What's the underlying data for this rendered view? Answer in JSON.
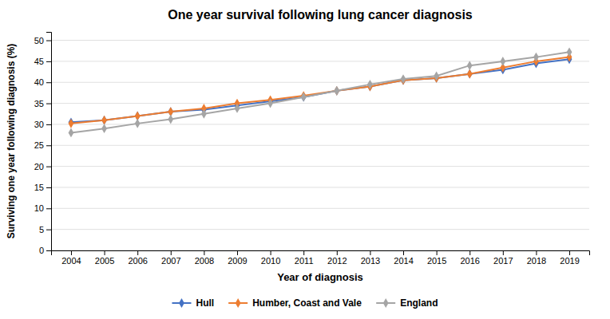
{
  "chart_data": {
    "type": "line",
    "title": "One year survival following lung cancer diagnosis",
    "xlabel": "Year of diagnosis",
    "ylabel": "Surviving one year following diagnosis (%)",
    "x": [
      2004,
      2005,
      2006,
      2007,
      2008,
      2009,
      2010,
      2011,
      2012,
      2013,
      2014,
      2015,
      2016,
      2017,
      2018,
      2019
    ],
    "series": [
      {
        "name": "Hull",
        "color": "#4472C4",
        "marker": "diamond",
        "values": [
          30.5,
          31.0,
          32.0,
          33.0,
          33.5,
          34.5,
          35.5,
          36.5,
          38.0,
          39.0,
          40.5,
          41.0,
          42.0,
          43.0,
          44.5,
          45.5
        ]
      },
      {
        "name": "Humber, Coast and Vale",
        "color": "#ED7D31",
        "marker": "diamond",
        "values": [
          30.2,
          31.0,
          32.0,
          33.0,
          33.8,
          35.0,
          35.8,
          36.8,
          38.0,
          39.0,
          40.5,
          41.0,
          42.0,
          43.5,
          45.0,
          46.0
        ]
      },
      {
        "name": "England",
        "color": "#A5A5A5",
        "marker": "diamond",
        "values": [
          28.0,
          29.0,
          30.2,
          31.2,
          32.5,
          33.8,
          35.0,
          36.5,
          38.0,
          39.5,
          40.8,
          41.5,
          44.0,
          45.0,
          46.0,
          47.2
        ]
      }
    ],
    "xlim": [
      2003.4,
      2019.6
    ],
    "xticks": [
      2004,
      2005,
      2006,
      2007,
      2008,
      2009,
      2010,
      2011,
      2012,
      2013,
      2014,
      2015,
      2016,
      2017,
      2018,
      2019
    ],
    "ylim": [
      0,
      52
    ],
    "yticks": [
      0,
      5,
      10,
      15,
      20,
      25,
      30,
      35,
      40,
      45,
      50
    ],
    "grid": true,
    "legend": "bottom"
  }
}
